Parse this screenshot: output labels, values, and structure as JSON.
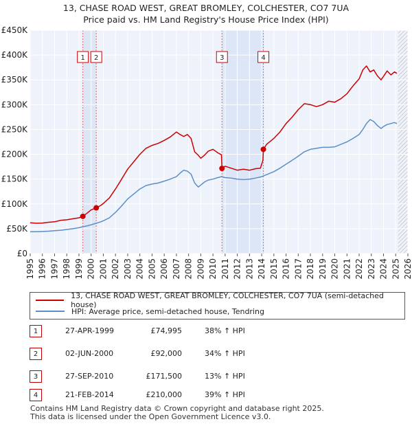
{
  "title_line1": "13, CHASE ROAD WEST, GREAT BROMLEY, COLCHESTER, CO7 7UA",
  "title_line2": "Price paid vs. HM Land Registry's House Price Index (HPI)",
  "chart_data": {
    "type": "line",
    "title": "13, CHASE ROAD WEST, GREAT BROMLEY, COLCHESTER, CO7 7UA — Price paid vs. HM Land Registry's House Price Index (HPI)",
    "xlim": [
      1995,
      2026
    ],
    "ylim": [
      0,
      450000
    ],
    "y_ticks": [
      0,
      50000,
      100000,
      150000,
      200000,
      250000,
      300000,
      350000,
      400000,
      450000
    ],
    "y_tick_labels": [
      "£0",
      "£50K",
      "£100K",
      "£150K",
      "£200K",
      "£250K",
      "£300K",
      "£350K",
      "£400K",
      "£450K"
    ],
    "x_ticks": [
      1995,
      1996,
      1997,
      1998,
      1999,
      2000,
      2001,
      2002,
      2003,
      2004,
      2005,
      2006,
      2007,
      2008,
      2009,
      2010,
      2011,
      2012,
      2013,
      2014,
      2015,
      2016,
      2017,
      2018,
      2019,
      2020,
      2021,
      2022,
      2023,
      2024,
      2025,
      2026
    ],
    "x_tick_labels": [
      "1995",
      "1996",
      "1997",
      "1998",
      "1999",
      "2000",
      "2001",
      "2002",
      "2003",
      "2004",
      "2005",
      "2006",
      "2007",
      "2008",
      "2009",
      "2010",
      "2011",
      "2012",
      "2013",
      "2014",
      "2015",
      "2016",
      "2017",
      "2018",
      "2019",
      "2020",
      "2021",
      "2022",
      "2023",
      "2024",
      "2025",
      "2026"
    ],
    "grid": true,
    "shaded_periods": [
      [
        1999.32,
        2000.42
      ],
      [
        2010.74,
        2014.14
      ]
    ],
    "future_hatch_from": 2025.2,
    "series": [
      {
        "name": "13, CHASE ROAD WEST, GREAT BROMLEY, COLCHESTER, CO7 7UA (semi-detached house)",
        "color": "#cc0000",
        "x": [
          1995.0,
          1995.5,
          1996.0,
          1996.5,
          1997.0,
          1997.5,
          1998.0,
          1998.5,
          1999.0,
          1999.32,
          1999.7,
          2000.0,
          2000.42,
          2000.8,
          2001.0,
          2001.5,
          2002.0,
          2002.5,
          2003.0,
          2003.5,
          2004.0,
          2004.5,
          2005.0,
          2005.5,
          2006.0,
          2006.5,
          2007.0,
          2007.3,
          2007.6,
          2007.9,
          2008.2,
          2008.5,
          2008.8,
          2009.0,
          2009.3,
          2009.6,
          2010.0,
          2010.4,
          2010.7,
          2010.74,
          2011.0,
          2011.5,
          2012.0,
          2012.5,
          2013.0,
          2013.5,
          2013.9,
          2014.1,
          2014.14,
          2014.4,
          2014.8,
          2015.0,
          2015.5,
          2016.0,
          2016.5,
          2017.0,
          2017.5,
          2018.0,
          2018.5,
          2019.0,
          2019.5,
          2020.0,
          2020.5,
          2021.0,
          2021.5,
          2022.0,
          2022.3,
          2022.6,
          2022.9,
          2023.2,
          2023.5,
          2023.8,
          2024.0,
          2024.3,
          2024.6,
          2024.9,
          2025.1
        ],
        "values": [
          62000,
          61000,
          61500,
          63000,
          64000,
          67000,
          68000,
          70000,
          72000,
          74995,
          82000,
          88000,
          92000,
          97000,
          101000,
          112000,
          130000,
          150000,
          170000,
          185000,
          200000,
          212000,
          218000,
          222000,
          228000,
          235000,
          245000,
          240000,
          236000,
          240000,
          232000,
          205000,
          198000,
          192000,
          198000,
          206000,
          210000,
          203000,
          199000,
          171500,
          176000,
          172000,
          168000,
          170000,
          168000,
          171000,
          172000,
          188000,
          210000,
          220000,
          228000,
          232000,
          245000,
          262000,
          275000,
          290000,
          302000,
          300000,
          296000,
          300000,
          307000,
          305000,
          312000,
          322000,
          338000,
          352000,
          370000,
          378000,
          366000,
          370000,
          358000,
          350000,
          357000,
          368000,
          360000,
          366000,
          363000
        ]
      },
      {
        "name": "HPI: Average price, semi-detached house, Tendring",
        "color": "#5b8ec9",
        "x": [
          1995.0,
          1995.5,
          1996.0,
          1996.5,
          1997.0,
          1997.5,
          1998.0,
          1998.5,
          1999.0,
          1999.32,
          1999.7,
          2000.0,
          2000.42,
          2000.8,
          2001.0,
          2001.5,
          2002.0,
          2002.5,
          2003.0,
          2003.5,
          2004.0,
          2004.5,
          2005.0,
          2005.5,
          2006.0,
          2006.5,
          2007.0,
          2007.3,
          2007.6,
          2007.9,
          2008.2,
          2008.5,
          2008.8,
          2009.0,
          2009.3,
          2009.6,
          2010.0,
          2010.4,
          2010.7,
          2011.0,
          2011.5,
          2012.0,
          2012.5,
          2013.0,
          2013.5,
          2014.0,
          2014.5,
          2015.0,
          2015.5,
          2016.0,
          2016.5,
          2017.0,
          2017.5,
          2018.0,
          2018.5,
          2019.0,
          2019.5,
          2020.0,
          2020.5,
          2021.0,
          2021.5,
          2022.0,
          2022.3,
          2022.6,
          2022.9,
          2023.2,
          2023.5,
          2023.8,
          2024.0,
          2024.3,
          2024.6,
          2024.9,
          2025.1
        ],
        "values": [
          44000,
          44000,
          44500,
          45000,
          46000,
          47000,
          48500,
          50000,
          52000,
          54000,
          56000,
          58000,
          61000,
          64000,
          66000,
          72000,
          83000,
          96000,
          110000,
          120000,
          130000,
          137000,
          140000,
          142000,
          146000,
          150000,
          155000,
          162000,
          168000,
          166000,
          160000,
          142000,
          134000,
          138000,
          144000,
          148000,
          150000,
          153000,
          155000,
          153000,
          152000,
          150000,
          149000,
          150000,
          152000,
          155000,
          160000,
          165000,
          172000,
          180000,
          188000,
          196000,
          205000,
          210000,
          212000,
          214000,
          214000,
          215000,
          220000,
          225000,
          232000,
          240000,
          250000,
          262000,
          270000,
          266000,
          258000,
          252000,
          256000,
          260000,
          262000,
          264000,
          262000
        ]
      }
    ],
    "sales": [
      {
        "id": "1",
        "year": 1999.32,
        "price": 74995
      },
      {
        "id": "2",
        "year": 2000.42,
        "price": 92000
      },
      {
        "id": "3",
        "year": 2010.74,
        "price": 171500
      },
      {
        "id": "4",
        "year": 2014.14,
        "price": 210000
      }
    ]
  },
  "legend": {
    "property": "13, CHASE ROAD WEST, GREAT BROMLEY, COLCHESTER, CO7 7UA (semi-detached house)",
    "hpi": "HPI: Average price, semi-detached house, Tendring",
    "property_color": "#cc0000",
    "hpi_color": "#5b8ec9"
  },
  "sales_table": [
    {
      "num": "1",
      "date": "27-APR-1999",
      "price": "£74,995",
      "hpi": "38% ↑ HPI"
    },
    {
      "num": "2",
      "date": "02-JUN-2000",
      "price": "£92,000",
      "hpi": "34% ↑ HPI"
    },
    {
      "num": "3",
      "date": "27-SEP-2010",
      "price": "£171,500",
      "hpi": "13% ↑ HPI"
    },
    {
      "num": "4",
      "date": "21-FEB-2014",
      "price": "£210,000",
      "hpi": "39% ↑ HPI"
    }
  ],
  "footer_line1": "Contains HM Land Registry data © Crown copyright and database right 2025.",
  "footer_line2": "This data is licensed under the Open Government Licence v3.0."
}
